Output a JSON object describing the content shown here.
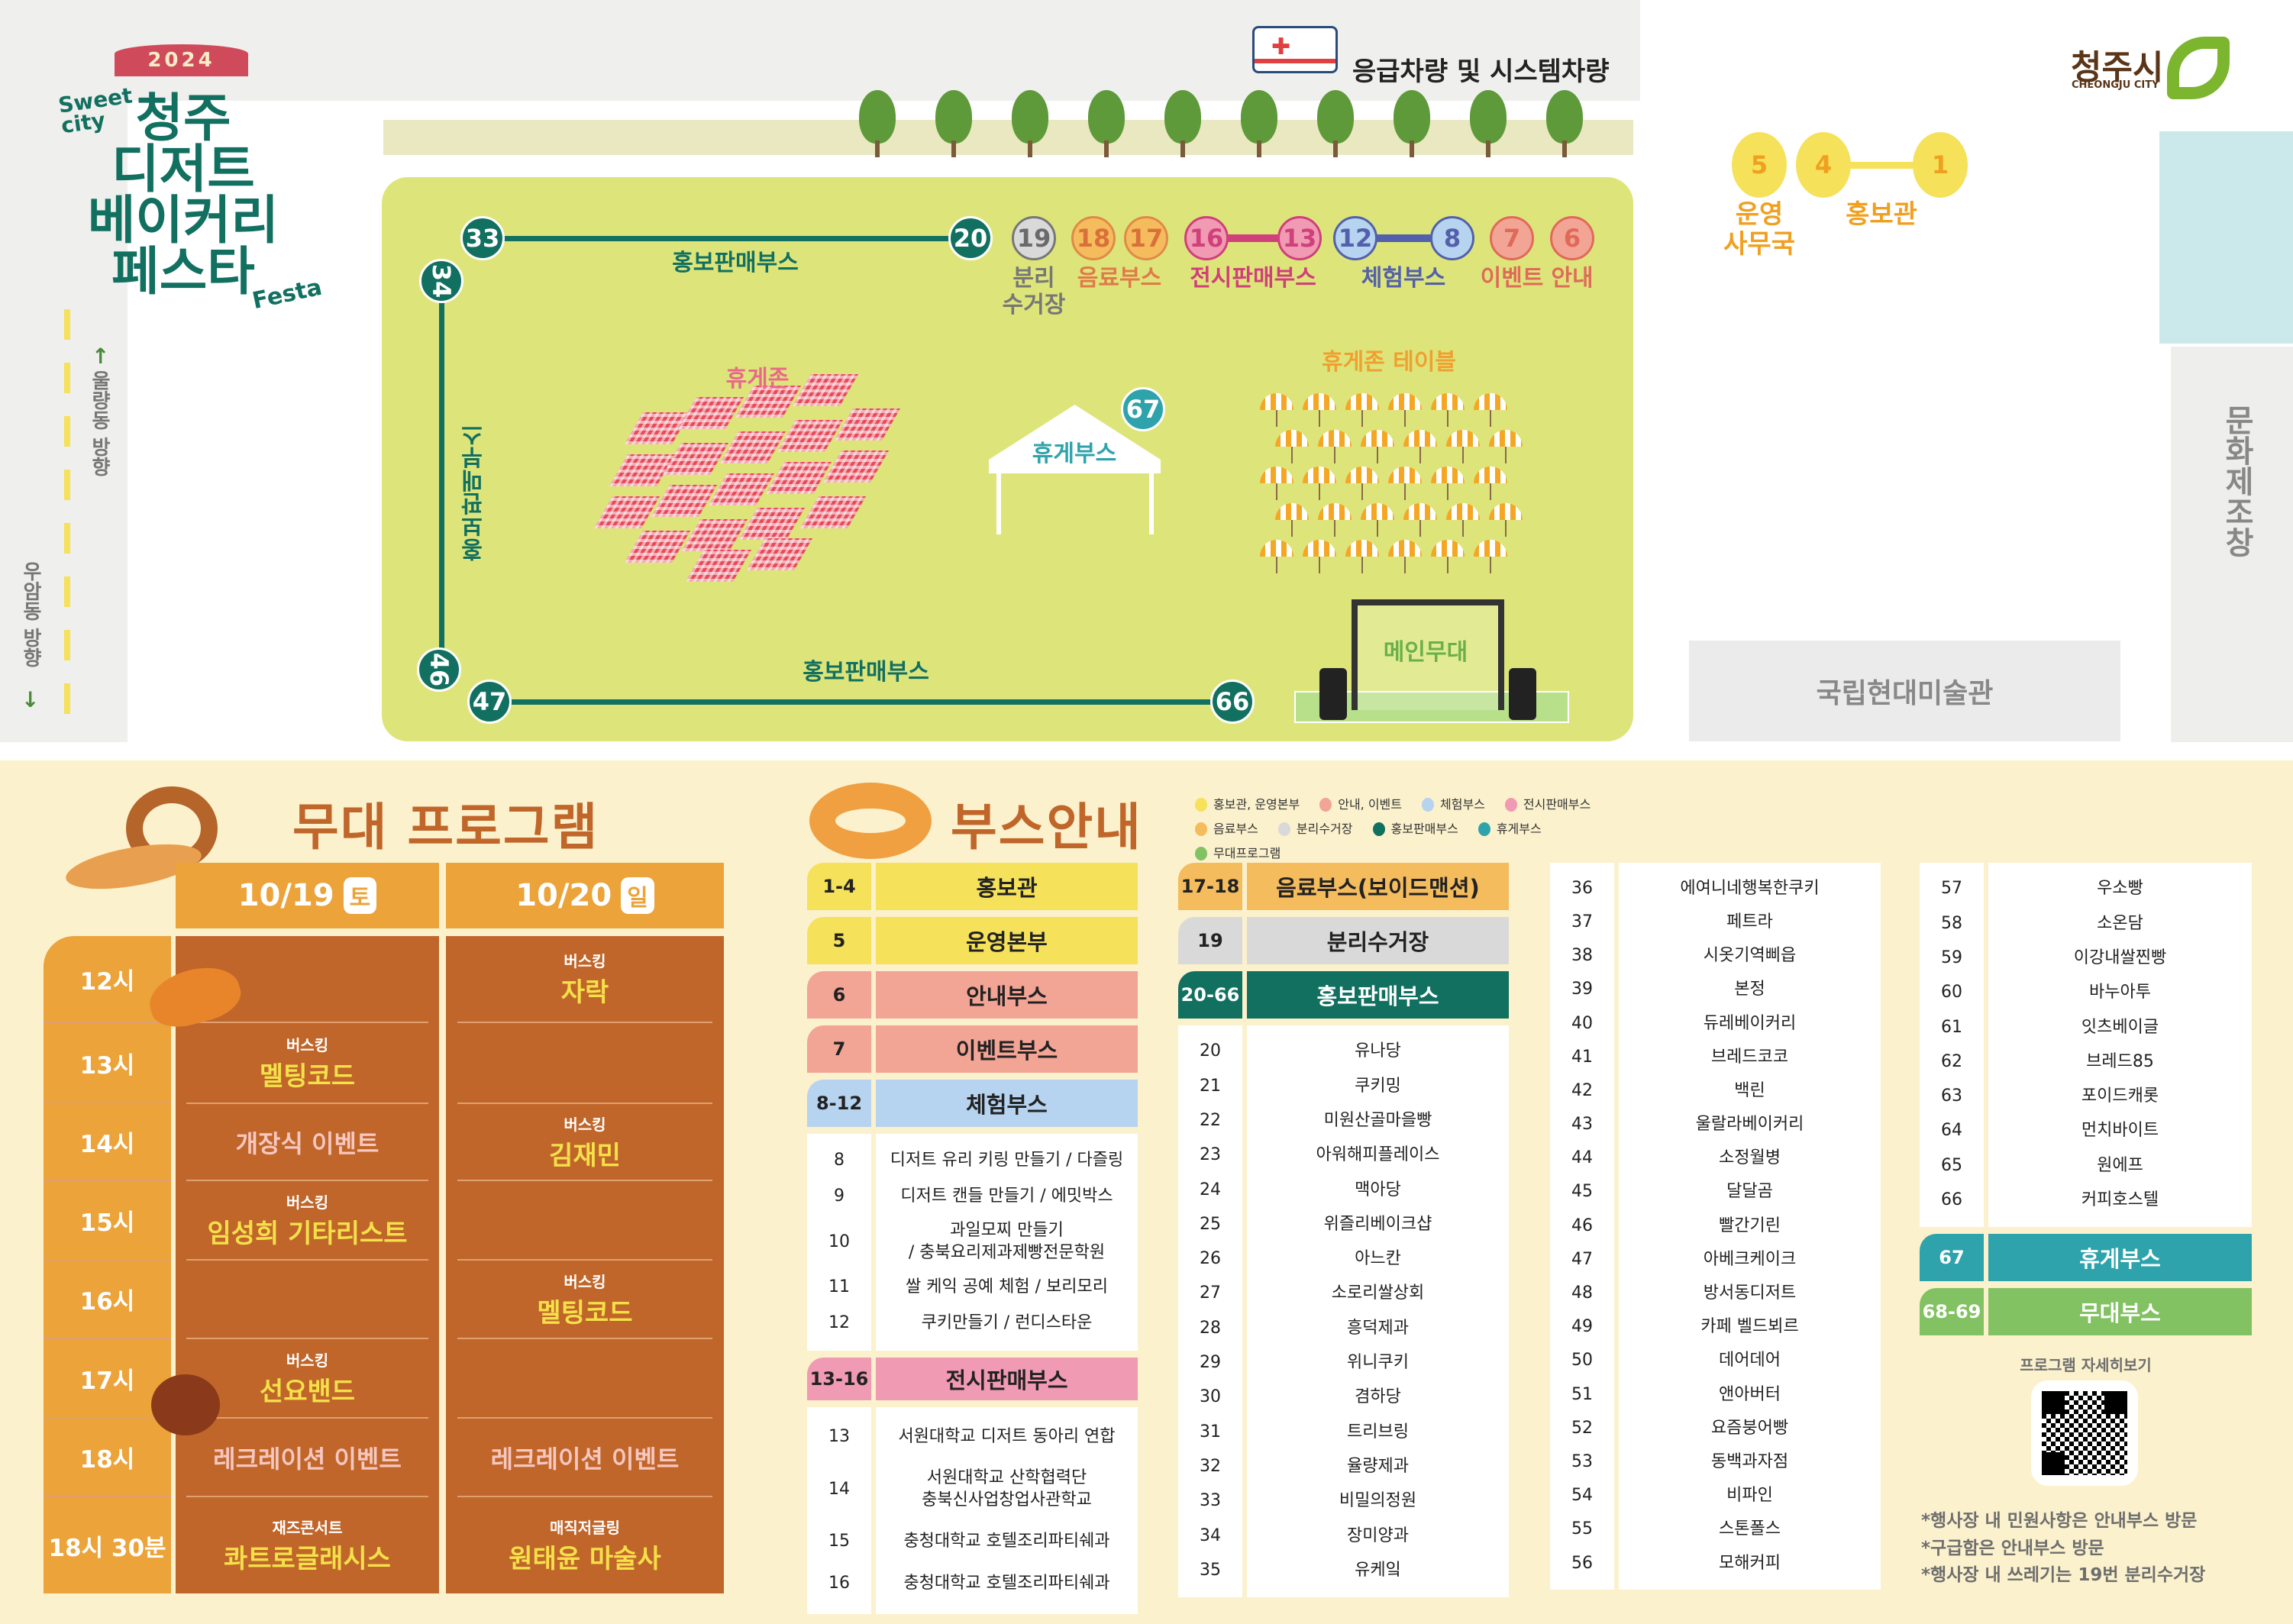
{
  "header": {
    "year": "2024",
    "sweet_city": "Sweet city",
    "title_lines": [
      "청주",
      "디저트",
      "베이커리",
      "페스타"
    ],
    "festa": "Festa",
    "logo_ko": "청주시",
    "logo_en": "CHEONGJU CITY"
  },
  "map": {
    "ambulance_label": "응급차량 및 시스템차량",
    "direction_up": "울량동 방향",
    "direction_down": "우암동 방향",
    "right_building": "문화제조창",
    "museum": "국립현대미술관",
    "markers": [
      "33",
      "34",
      "20",
      "19",
      "18",
      "17",
      "16",
      "13",
      "12",
      "8",
      "7",
      "6",
      "46",
      "47",
      "66",
      "67",
      "5",
      "4",
      "1"
    ],
    "labels": {
      "promo_top": "홍보판매부스",
      "promo_left": "홍보판매부스",
      "promo_bottom": "홍보판매부스",
      "recycle": "분리\n수거장",
      "drink": "음료부스",
      "exhibit": "전시판매부스",
      "experience": "체험부스",
      "event": "이벤트",
      "info": "안내",
      "rest_zone": "휴게존",
      "rest_booth": "휴게부스",
      "rest_table": "휴게존 테이블",
      "main_stage": "메인무대",
      "office": "운영\n사무국",
      "promo_hall": "홍보관"
    }
  },
  "stage": {
    "title": "무대 프로그램",
    "days": [
      {
        "date": "10/19",
        "weekday": "토"
      },
      {
        "date": "10/20",
        "weekday": "일"
      }
    ],
    "times": [
      "12시",
      "13시",
      "14시",
      "15시",
      "16시",
      "17시",
      "18시",
      "18시 30분"
    ],
    "day1": [
      {
        "type": "",
        "name": ""
      },
      {
        "type": "버스킹",
        "name": "멜팅코드"
      },
      {
        "type": "",
        "name": "개장식 이벤트",
        "event": true
      },
      {
        "type": "버스킹",
        "name": "임성희 기타리스트"
      },
      {
        "type": "",
        "name": ""
      },
      {
        "type": "버스킹",
        "name": "선요밴드"
      },
      {
        "type": "",
        "name": "레크레이션 이벤트",
        "event": true
      },
      {
        "type": "재즈콘서트",
        "name": "콰트로글래시스"
      }
    ],
    "day2": [
      {
        "type": "버스킹",
        "name": "자락"
      },
      {
        "type": "",
        "name": ""
      },
      {
        "type": "버스킹",
        "name": "김재민"
      },
      {
        "type": "",
        "name": ""
      },
      {
        "type": "버스킹",
        "name": "멜팅코드"
      },
      {
        "type": "",
        "name": ""
      },
      {
        "type": "",
        "name": "레크레이션 이벤트",
        "event": true
      },
      {
        "type": "매직저글링",
        "name": "원태윤 마술사"
      }
    ]
  },
  "booths": {
    "title": "부스안내",
    "legend": [
      {
        "label": "홍보관, 운영본부",
        "color": "#f5e15a"
      },
      {
        "label": "안내, 이벤트",
        "color": "#f2a495"
      },
      {
        "label": "체험부스",
        "color": "#b6d3ef"
      },
      {
        "label": "전시판매부스",
        "color": "#f09ab3"
      },
      {
        "label": "음료부스",
        "color": "#f5bc5e"
      },
      {
        "label": "분리수거장",
        "color": "#d9d9d9"
      },
      {
        "label": "홍보판매부스",
        "color": "#127060"
      },
      {
        "label": "휴게부스",
        "color": "#2ea3ab"
      },
      {
        "label": "무대프로그램",
        "color": "#82c263"
      }
    ],
    "columns": [
      [
        {
          "num": "1-4",
          "name": "홍보관",
          "color": "#f5e15a"
        },
        {
          "num": "5",
          "name": "운영본부",
          "color": "#f5e15a"
        },
        {
          "num": "6",
          "name": "안내부스",
          "color": "#f2a495"
        },
        {
          "num": "7",
          "name": "이벤트부스",
          "color": "#f2a495"
        },
        {
          "num": "8-12",
          "name": "체험부스",
          "color": "#b6d3ef",
          "items": [
            {
              "num": "8",
              "name": "디저트 유리 키링 만들기 / 다즐링"
            },
            {
              "num": "9",
              "name": "디저트 캔들 만들기 / 에밋박스"
            },
            {
              "num": "10",
              "name": "과일모찌 만들기\n/ 충북요리제과제빵전문학원"
            },
            {
              "num": "11",
              "name": "쌀 케익 공예 체험 / 보리모리"
            },
            {
              "num": "12",
              "name": "쿠키만들기 / 런디스타운"
            }
          ]
        },
        {
          "num": "13-16",
          "name": "전시판매부스",
          "color": "#f09ab3",
          "items": [
            {
              "num": "13",
              "name": "서원대학교 디저트 동아리 연합"
            },
            {
              "num": "14",
              "name": "서원대학교 산학협력단\n충북신사업창업사관학교"
            },
            {
              "num": "15",
              "name": "충청대학교 호텔조리파티쉐과"
            },
            {
              "num": "16",
              "name": "충청대학교 호텔조리파티쉐과"
            }
          ]
        }
      ],
      [
        {
          "num": "17-18",
          "name": "음료부스(보이드맨션)",
          "color": "#f5bc5e"
        },
        {
          "num": "19",
          "name": "분리수거장",
          "color": "#d9d9d9"
        },
        {
          "num": "20-66",
          "name": "홍보판매부스",
          "color": "#127060",
          "light": true,
          "items": [
            {
              "num": "20",
              "name": "유나당"
            },
            {
              "num": "21",
              "name": "쿠키밍"
            },
            {
              "num": "22",
              "name": "미원산골마을빵"
            },
            {
              "num": "23",
              "name": "아워해피플레이스"
            },
            {
              "num": "24",
              "name": "맥아당"
            },
            {
              "num": "25",
              "name": "위즐리베이크샵"
            },
            {
              "num": "26",
              "name": "아느칸"
            },
            {
              "num": "27",
              "name": "소로리쌀상회"
            },
            {
              "num": "28",
              "name": "흥덕제과"
            },
            {
              "num": "29",
              "name": "위니쿠키"
            },
            {
              "num": "30",
              "name": "겸하당"
            },
            {
              "num": "31",
              "name": "트리브링"
            },
            {
              "num": "32",
              "name": "율량제과"
            },
            {
              "num": "33",
              "name": "비밀의정원"
            },
            {
              "num": "34",
              "name": "장미양과"
            },
            {
              "num": "35",
              "name": "유케잌"
            }
          ]
        }
      ],
      [
        {
          "items": [
            {
              "num": "36",
              "name": "에여니네행복한쿠키"
            },
            {
              "num": "37",
              "name": "페트라"
            },
            {
              "num": "38",
              "name": "시옷기역삐읍"
            },
            {
              "num": "39",
              "name": "본정"
            },
            {
              "num": "40",
              "name": "듀레베이커리"
            },
            {
              "num": "41",
              "name": "브레드코코"
            },
            {
              "num": "42",
              "name": "백린"
            },
            {
              "num": "43",
              "name": "울랄라베이커리"
            },
            {
              "num": "44",
              "name": "소정월병"
            },
            {
              "num": "45",
              "name": "달달곰"
            },
            {
              "num": "46",
              "name": "빨간기린"
            },
            {
              "num": "47",
              "name": "아베크케이크"
            },
            {
              "num": "48",
              "name": "방서동디저트"
            },
            {
              "num": "49",
              "name": "카페 벨드뵈르"
            },
            {
              "num": "50",
              "name": "데어데어"
            },
            {
              "num": "51",
              "name": "앤아버터"
            },
            {
              "num": "52",
              "name": "요즘붕어빵"
            },
            {
              "num": "53",
              "name": "동백과자점"
            },
            {
              "num": "54",
              "name": "비파인"
            },
            {
              "num": "55",
              "name": "스톤폴스"
            },
            {
              "num": "56",
              "name": "모해커피"
            }
          ]
        }
      ],
      [
        {
          "items": [
            {
              "num": "57",
              "name": "우소빵"
            },
            {
              "num": "58",
              "name": "소온담"
            },
            {
              "num": "59",
              "name": "이강내쌀찐빵"
            },
            {
              "num": "60",
              "name": "바누아투"
            },
            {
              "num": "61",
              "name": "잇츠베이글"
            },
            {
              "num": "62",
              "name": "브레드85"
            },
            {
              "num": "63",
              "name": "포이드캐롯"
            },
            {
              "num": "64",
              "name": "먼치바이트"
            },
            {
              "num": "65",
              "name": "원에프"
            },
            {
              "num": "66",
              "name": "커피호스텔"
            }
          ]
        },
        {
          "num": "67",
          "name": "휴게부스",
          "color": "#2ea3ab",
          "light": true
        },
        {
          "num": "68-69",
          "name": "무대부스",
          "color": "#82c263",
          "light": true
        }
      ]
    ],
    "qr_label": "프로그램 자세히보기",
    "notes": [
      "*행사장 내 민원사항은 안내부스 방문",
      "*구급함은 안내부스 방문",
      "*행사장 내 쓰레기는 19번 분리수거장"
    ]
  }
}
